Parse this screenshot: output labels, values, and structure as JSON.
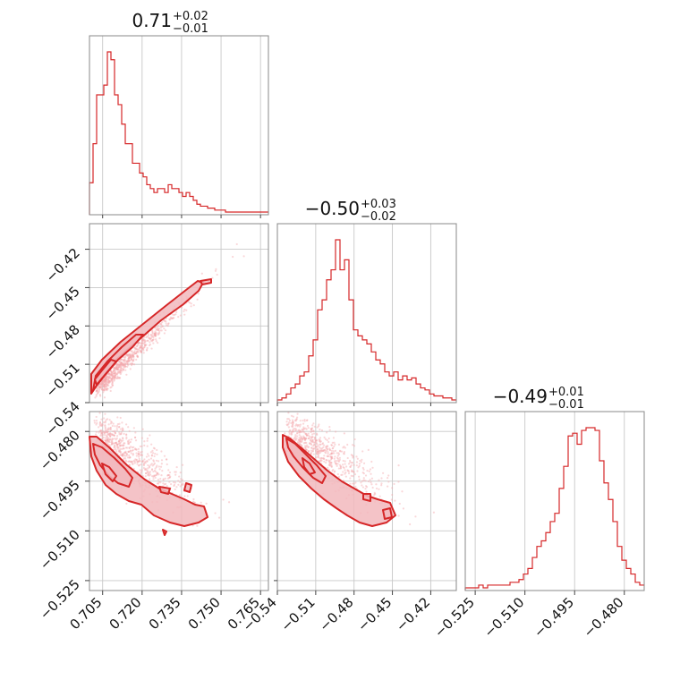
{
  "chart_data": {
    "type": "corner",
    "color": "#d62728",
    "fill_color": "#f2b9bd",
    "params": [
      {
        "title": {
          "main": "0.71",
          "plus": "+0.02",
          "minus": "−0.01"
        },
        "range": [
          0.7,
          0.768
        ],
        "ticks": [
          0.705,
          0.72,
          0.735,
          0.75,
          0.765
        ],
        "tick_labels": [
          "0.705",
          "0.720",
          "0.735",
          "0.750",
          "0.765"
        ]
      },
      {
        "title": {
          "main": "−0.50",
          "plus": "+0.03",
          "minus": "−0.02"
        },
        "range": [
          -0.54,
          -0.4
        ],
        "ticks": [
          -0.54,
          -0.51,
          -0.48,
          -0.45,
          -0.42
        ],
        "tick_labels": [
          "−0.54",
          "−0.51",
          "−0.48",
          "−0.45",
          "−0.42"
        ]
      },
      {
        "title": {
          "main": "−0.49",
          "plus": "+0.01",
          "minus": "−0.01"
        },
        "range": [
          -0.528,
          -0.474
        ],
        "ticks": [
          -0.525,
          -0.51,
          -0.495,
          -0.48
        ],
        "tick_labels": [
          "−0.525",
          "−0.510",
          "−0.495",
          "−0.480"
        ]
      }
    ],
    "histograms": [
      {
        "param": 0,
        "counts": [
          15,
          35,
          60,
          60,
          65,
          82,
          78,
          60,
          55,
          45,
          35,
          35,
          25,
          25,
          20,
          18,
          14,
          12,
          10,
          12,
          12,
          10,
          14,
          12,
          12,
          10,
          8,
          10,
          8,
          6,
          4,
          3,
          3,
          2,
          2,
          1,
          1,
          1,
          0,
          0,
          0,
          0,
          0,
          0,
          0,
          0,
          0,
          0,
          0,
          0
        ]
      },
      {
        "param": 1,
        "counts": [
          0,
          1,
          3,
          6,
          8,
          12,
          14,
          22,
          30,
          45,
          50,
          60,
          65,
          80,
          65,
          70,
          50,
          35,
          32,
          30,
          28,
          24,
          20,
          18,
          14,
          12,
          14,
          10,
          12,
          10,
          11,
          8,
          6,
          5,
          3,
          2,
          2,
          1,
          1,
          0
        ]
      },
      {
        "param": 2,
        "counts": [
          0,
          0,
          0,
          1,
          0,
          1,
          1,
          1,
          1,
          1,
          2,
          2,
          3,
          5,
          7,
          11,
          15,
          17,
          20,
          24,
          27,
          36,
          44,
          55,
          56,
          52,
          57,
          58,
          58,
          57,
          46,
          38,
          32,
          24,
          15,
          10,
          7,
          5,
          2,
          1
        ]
      }
    ],
    "scatter_panels": [
      {
        "x_param": 0,
        "y_param": 1
      },
      {
        "x_param": 0,
        "y_param": 2
      },
      {
        "x_param": 1,
        "y_param": 2
      }
    ]
  }
}
